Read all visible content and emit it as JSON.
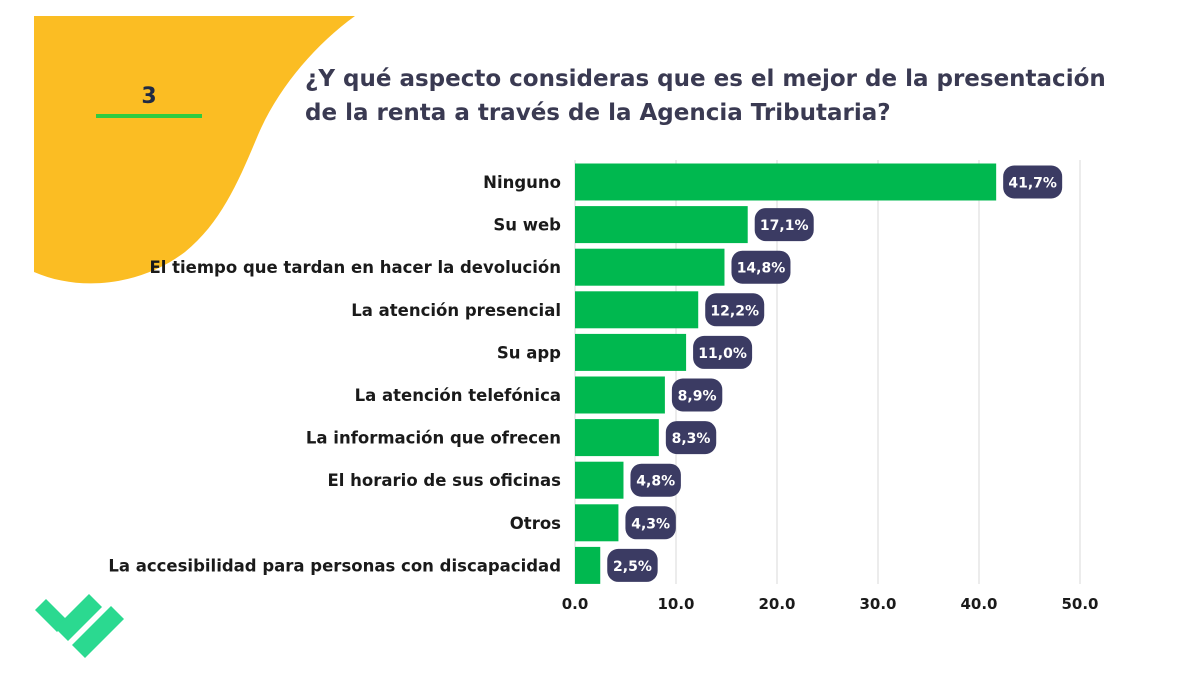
{
  "slide": {
    "number": "3"
  },
  "title": {
    "line1": "¿Y qué aspecto consideras que es el mejor de la presentación",
    "line2": "de la renta a través de la Agencia Tributaria?"
  },
  "colors": {
    "bar": "#00b84f",
    "badge": "#3b3b63",
    "badge_text": "#ffffff",
    "accent_yellow": "#fbbd23",
    "gridline": "#d9d9d9",
    "logo": "#2bd990"
  },
  "chart_data": {
    "type": "bar",
    "orientation": "horizontal",
    "title": "¿Y qué aspecto consideras que es el mejor de la presentación de la renta a través de la Agencia Tributaria?",
    "categories": [
      "Ninguno",
      "Su web",
      "El tiempo que tardan en hacer la devolución",
      "La atención presencial",
      "Su app",
      "La atención telefónica",
      "La información que ofrecen",
      "El horario de sus oficinas",
      "Otros",
      "La accesibilidad para personas con discapacidad"
    ],
    "values": [
      41.7,
      17.1,
      14.8,
      12.2,
      11.0,
      8.9,
      8.3,
      4.8,
      4.3,
      2.5
    ],
    "value_labels": [
      "41,7%",
      "17,1%",
      "14,8%",
      "12,2%",
      "11,0%",
      "8,9%",
      "8,3%",
      "4,8%",
      "4,3%",
      "2,5%"
    ],
    "xlim": [
      0,
      50
    ],
    "xticks": [
      0,
      10,
      20,
      30,
      40,
      50
    ],
    "xtick_labels": [
      "0.0",
      "10.0",
      "20.0",
      "30.0",
      "40.0",
      "50.0"
    ],
    "xlabel": "",
    "ylabel": "",
    "grid": true
  }
}
